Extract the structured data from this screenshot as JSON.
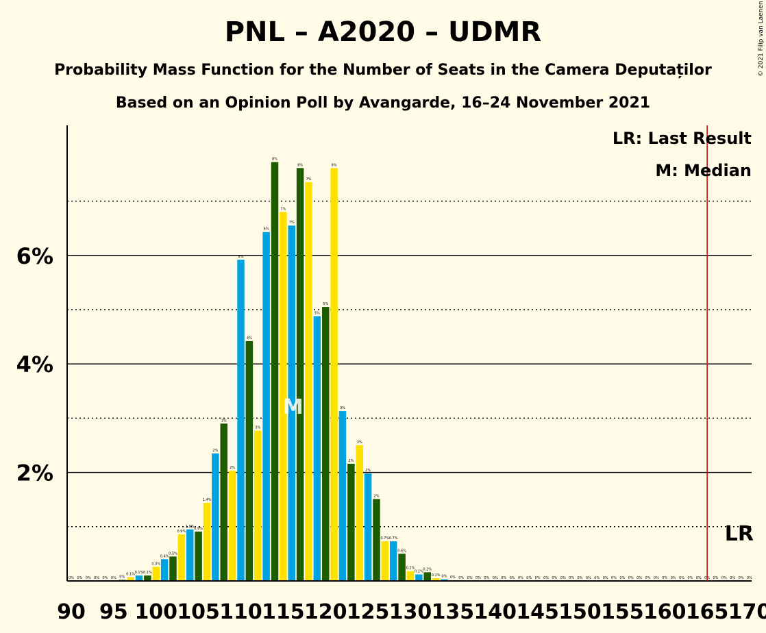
{
  "title": "PNL – A2020 – UDMR",
  "subtitle": "Probability Mass Function for the Number of Seats in the Camera Deputaților",
  "subtitle2": "Based on an Opinion Poll by Avangarde, 16–24 November 2021",
  "copyright": "© 2021 Filip van Laenen",
  "legend": {
    "lr": "LR: Last Result",
    "median": "M: Median"
  },
  "markers": {
    "median_label": "M",
    "median_seat": 116,
    "last_result_label": "LR",
    "last_result_seat": 165
  },
  "colors": {
    "blue": "#00A3E0",
    "green": "#1E5C00",
    "yellow": "#FFE100",
    "last_result_line": "#C00000"
  },
  "chart_data": {
    "type": "bar",
    "xlabel": "",
    "ylabel": "",
    "xlim": [
      90,
      170
    ],
    "ylim": [
      0,
      8.4
    ],
    "x_ticks": [
      90,
      95,
      100,
      105,
      110,
      115,
      120,
      125,
      130,
      135,
      140,
      145,
      150,
      155,
      160,
      165,
      170
    ],
    "y_ticks": [
      {
        "value": 2,
        "label": "2%"
      },
      {
        "value": 4,
        "label": "4%"
      },
      {
        "value": 6,
        "label": "6%"
      }
    ],
    "grid_solid": [
      2,
      4,
      6
    ],
    "grid_dotted": [
      1,
      3,
      5,
      7
    ],
    "bar_color_cycle": [
      "green",
      "yellow",
      "blue"
    ],
    "bar_color_start_seat": 90,
    "seats": [
      90,
      91,
      92,
      93,
      94,
      95,
      96,
      97,
      98,
      99,
      100,
      101,
      102,
      103,
      104,
      105,
      106,
      107,
      108,
      109,
      110,
      111,
      112,
      113,
      114,
      115,
      116,
      117,
      118,
      119,
      120,
      121,
      122,
      123,
      124,
      125,
      126,
      127,
      128,
      129,
      130,
      131,
      132,
      133,
      134,
      135,
      136,
      137,
      138,
      139,
      140,
      141,
      142,
      143,
      144,
      145,
      146,
      147,
      148,
      149,
      150,
      151,
      152,
      153,
      154,
      155,
      156,
      157,
      158,
      159,
      160,
      161,
      162,
      163,
      164,
      165,
      166,
      167,
      168,
      169,
      170
    ],
    "values": [
      0,
      0,
      0,
      0,
      0,
      0,
      0.02,
      0.07,
      0.1,
      0.1,
      0.26,
      0.4,
      0.45,
      0.86,
      0.95,
      0.91,
      1.44,
      2.35,
      2.9,
      2.03,
      5.92,
      4.42,
      2.77,
      6.43,
      7.72,
      6.8,
      6.55,
      7.61,
      7.35,
      4.88,
      5.05,
      7.61,
      3.13,
      2.16,
      2.5,
      1.98,
      1.51,
      0.73,
      0.73,
      0.5,
      0.18,
      0.12,
      0.16,
      0.05,
      0.03,
      0.01,
      0,
      0,
      0,
      0,
      0,
      0,
      0,
      0,
      0,
      0,
      0,
      0,
      0,
      0,
      0,
      0,
      0,
      0,
      0,
      0,
      0,
      0,
      0,
      0,
      0,
      0,
      0,
      0,
      0,
      0,
      0,
      0,
      0,
      0,
      0
    ],
    "labels": [
      "0%",
      "0%",
      "0%",
      "0%",
      "0%",
      "0%",
      "0%",
      "0.1%",
      "0.1%",
      "0.1%",
      "0.3%",
      "0.4%",
      "0.5%",
      "0.9%",
      "1.0%",
      "0.9%",
      "1.4%",
      "2%",
      "3%",
      "2%",
      "6%",
      "4%",
      "3%",
      "6%",
      "8%",
      "7%",
      "7%",
      "8%",
      "7%",
      "5%",
      "5%",
      "8%",
      "3%",
      "2%",
      "3%",
      "2%",
      "2%",
      "0.7%",
      "0.7%",
      "0.5%",
      "0.2%",
      "0.1%",
      "0.2%",
      "0.1%",
      "0%",
      "0%",
      "0%",
      "0%",
      "0%",
      "0%",
      "0%",
      "0%",
      "0%",
      "0%",
      "0%",
      "0%",
      "0%",
      "0%",
      "0%",
      "0%",
      "0%",
      "0%",
      "0%",
      "0%",
      "0%",
      "0%",
      "0%",
      "0%",
      "0%",
      "0%",
      "0%",
      "0%",
      "0%",
      "0%",
      "0%",
      "0%",
      "0%",
      "0%",
      "0%",
      "0%",
      "0%"
    ]
  }
}
